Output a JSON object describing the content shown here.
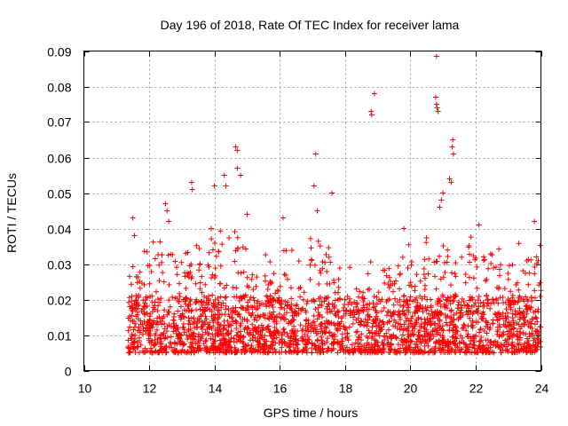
{
  "chart_data": {
    "type": "scatter",
    "title": "Day 196 of 2018, Rate Of TEC Index for receiver lama",
    "xlabel": "GPS time / hours",
    "ylabel": "ROTI / TECUs",
    "xlim": [
      10,
      24
    ],
    "ylim": [
      0,
      0.09
    ],
    "xticks": [
      10,
      12,
      14,
      16,
      18,
      20,
      22,
      24
    ],
    "xtick_labels": [
      "10",
      "12",
      "14",
      "16",
      "18",
      "20",
      "22",
      "24"
    ],
    "yticks": [
      0,
      0.01,
      0.02,
      0.03,
      0.04,
      0.05,
      0.06,
      0.07,
      0.08,
      0.09
    ],
    "ytick_labels": [
      "0",
      "0.01",
      "0.02",
      "0.03",
      "0.04",
      "0.05",
      "0.06",
      "0.07",
      "0.08",
      "0.09"
    ],
    "grid": true,
    "marker": "+",
    "color": "#ff0000",
    "data_extent": {
      "x_start": 11.35,
      "x_end": 24.0
    },
    "density_profile": {
      "hours": [
        11.4,
        12.0,
        12.5,
        13.0,
        13.5,
        14.0,
        14.5,
        15.0,
        15.5,
        16.0,
        16.5,
        17.0,
        17.5,
        18.0,
        18.5,
        19.0,
        19.5,
        20.0,
        20.5,
        21.0,
        21.5,
        22.0,
        22.5,
        23.0,
        23.5,
        24.0
      ],
      "typical_upper": [
        0.025,
        0.03,
        0.035,
        0.03,
        0.032,
        0.035,
        0.038,
        0.03,
        0.026,
        0.028,
        0.03,
        0.035,
        0.03,
        0.022,
        0.024,
        0.028,
        0.03,
        0.03,
        0.032,
        0.035,
        0.03,
        0.033,
        0.032,
        0.03,
        0.032,
        0.03
      ]
    },
    "notable_points": [
      {
        "x": 11.5,
        "y": 0.043
      },
      {
        "x": 11.55,
        "y": 0.038
      },
      {
        "x": 12.5,
        "y": 0.047
      },
      {
        "x": 12.55,
        "y": 0.045
      },
      {
        "x": 12.6,
        "y": 0.042
      },
      {
        "x": 13.3,
        "y": 0.053
      },
      {
        "x": 13.32,
        "y": 0.051
      },
      {
        "x": 14.0,
        "y": 0.052
      },
      {
        "x": 14.3,
        "y": 0.055
      },
      {
        "x": 14.35,
        "y": 0.052
      },
      {
        "x": 14.65,
        "y": 0.063
      },
      {
        "x": 14.7,
        "y": 0.062
      },
      {
        "x": 14.7,
        "y": 0.057
      },
      {
        "x": 14.8,
        "y": 0.055
      },
      {
        "x": 15.0,
        "y": 0.044
      },
      {
        "x": 16.1,
        "y": 0.043
      },
      {
        "x": 17.1,
        "y": 0.061
      },
      {
        "x": 17.05,
        "y": 0.052
      },
      {
        "x": 17.15,
        "y": 0.045
      },
      {
        "x": 17.6,
        "y": 0.05
      },
      {
        "x": 18.8,
        "y": 0.073
      },
      {
        "x": 18.82,
        "y": 0.072
      },
      {
        "x": 18.9,
        "y": 0.078
      },
      {
        "x": 20.8,
        "y": 0.0885
      },
      {
        "x": 20.78,
        "y": 0.077
      },
      {
        "x": 20.8,
        "y": 0.075
      },
      {
        "x": 20.82,
        "y": 0.074
      },
      {
        "x": 20.85,
        "y": 0.073
      },
      {
        "x": 21.3,
        "y": 0.065
      },
      {
        "x": 21.28,
        "y": 0.063
      },
      {
        "x": 21.32,
        "y": 0.061
      },
      {
        "x": 21.2,
        "y": 0.054
      },
      {
        "x": 21.25,
        "y": 0.053
      },
      {
        "x": 21.0,
        "y": 0.05
      },
      {
        "x": 20.95,
        "y": 0.048
      },
      {
        "x": 20.9,
        "y": 0.046
      },
      {
        "x": 23.8,
        "y": 0.042
      },
      {
        "x": 22.1,
        "y": 0.041
      },
      {
        "x": 19.8,
        "y": 0.04
      },
      {
        "x": 13.9,
        "y": 0.04
      }
    ]
  }
}
